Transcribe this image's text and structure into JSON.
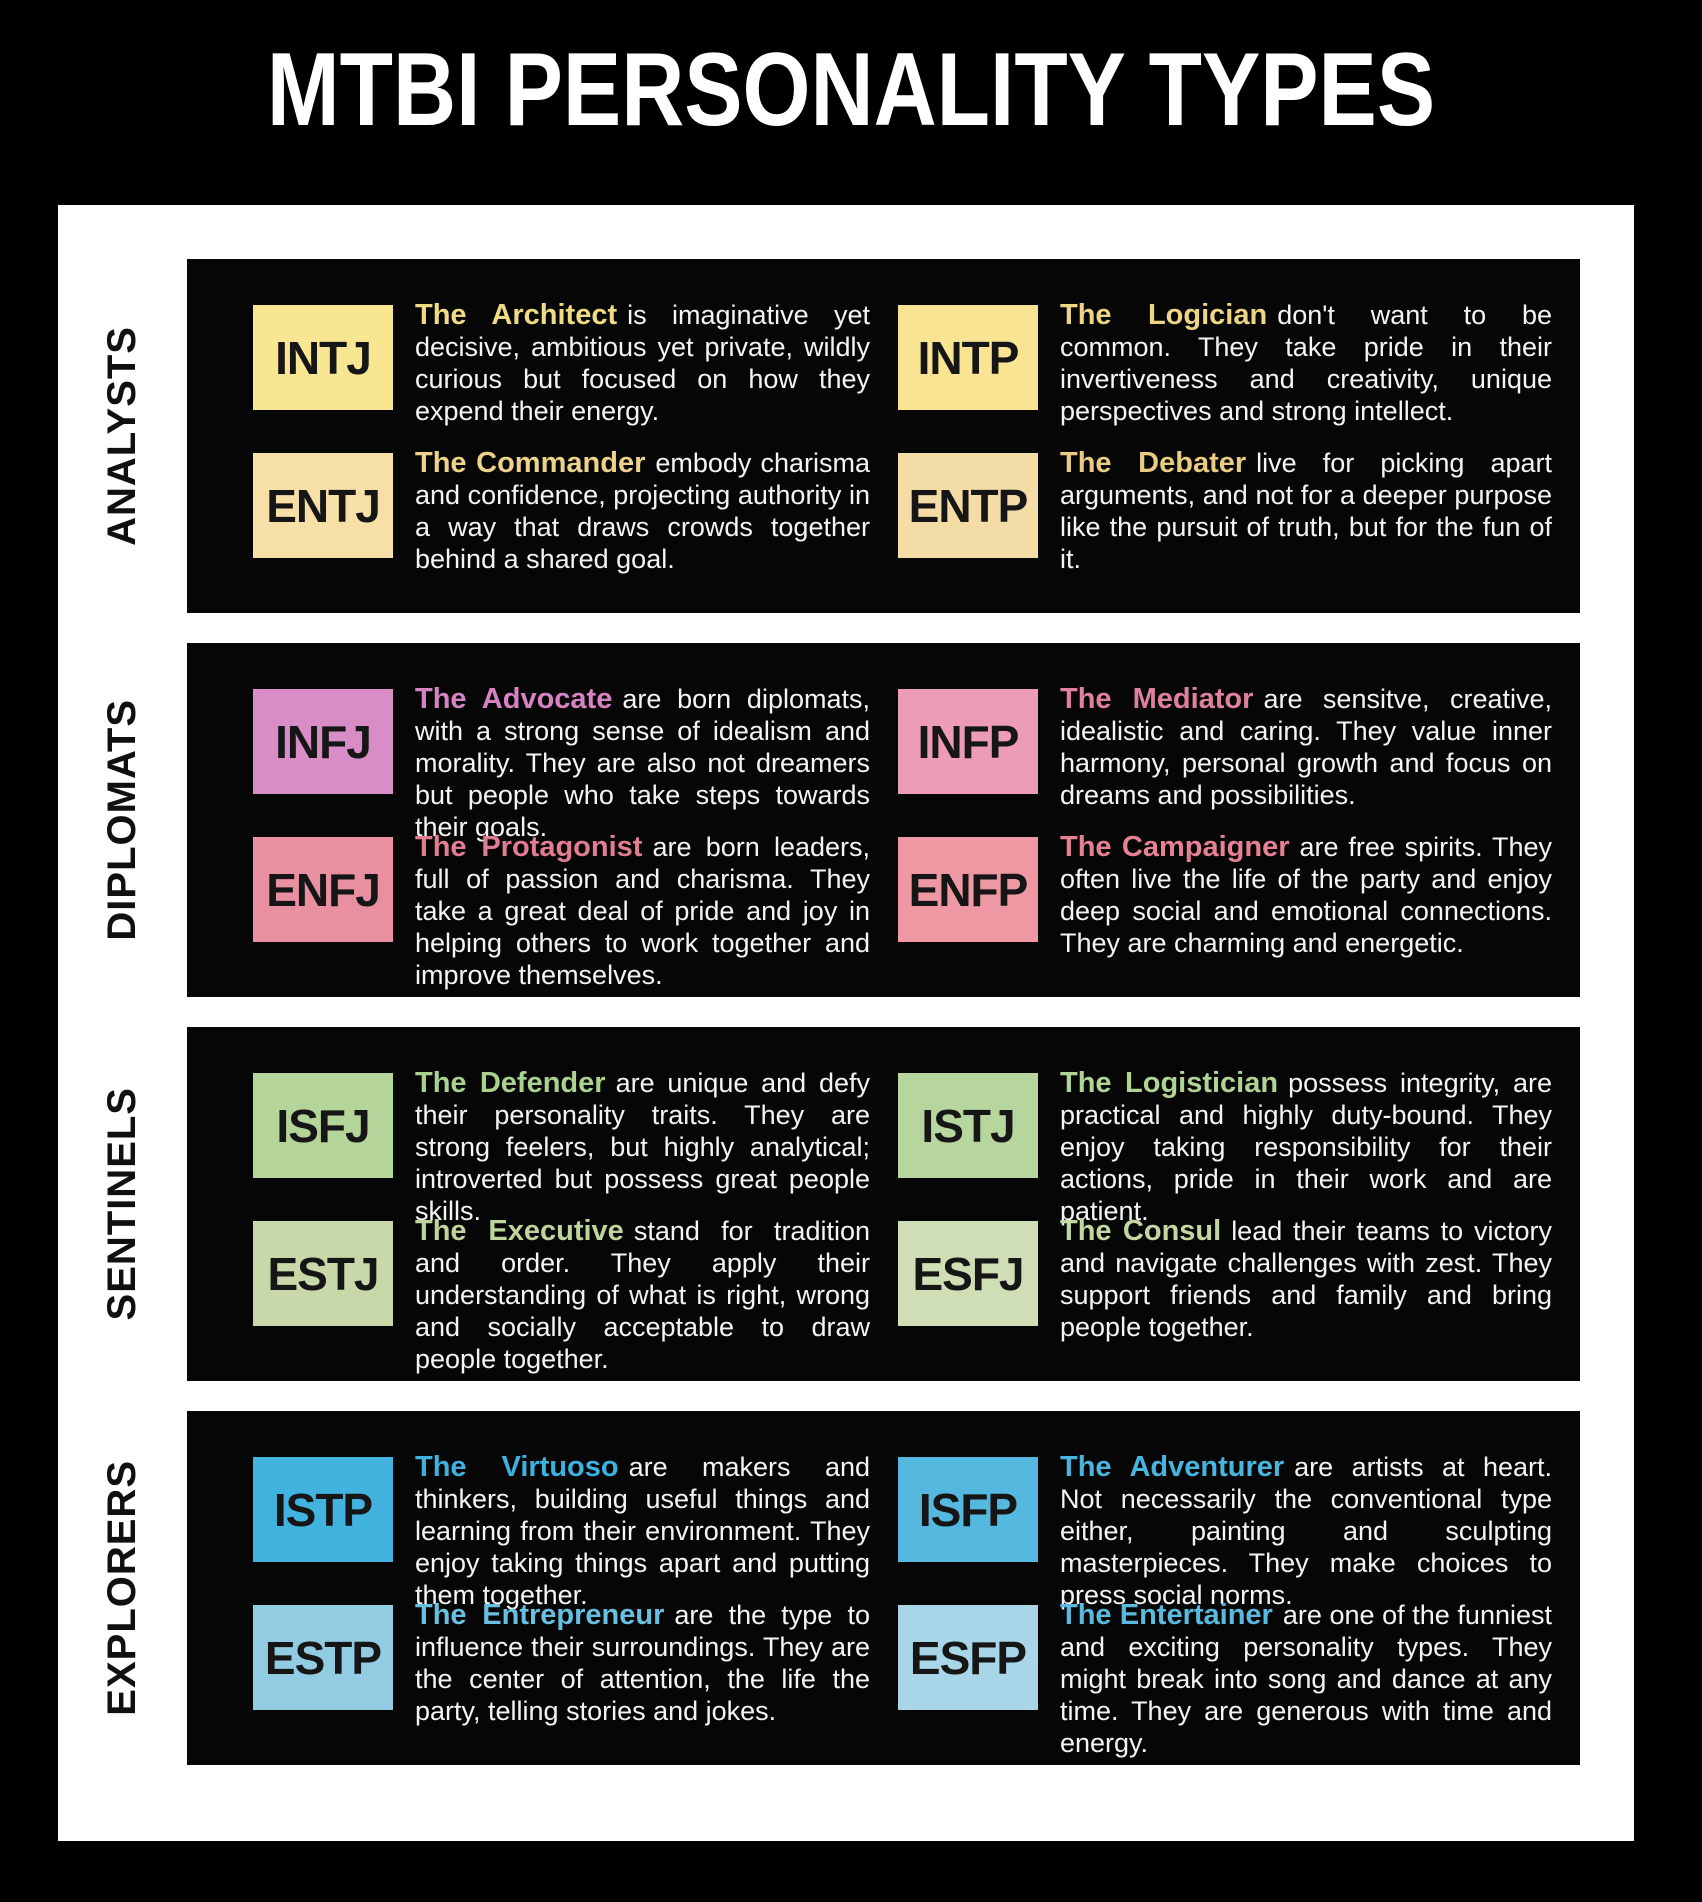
{
  "title": "MTBI PERSONALITY TYPES",
  "colors": {
    "background": "#000000",
    "frame": "#ffffff",
    "panel": "#060606",
    "body_text": "#f4f4f4",
    "section_label_text": "#101010",
    "badge_text": "#161616"
  },
  "sections": [
    {
      "label": "ANALYSTS",
      "types": [
        {
          "code": "INTJ",
          "name": "The Architect",
          "badge_color": "#f8e692",
          "name_color": "#f0db85",
          "description": "is imaginative yet decisive, ambitious yet private, wildly curious but focused on how they expend their energy."
        },
        {
          "code": "INTP",
          "name": "The Logician",
          "badge_color": "#f8e492",
          "name_color": "#edd584",
          "description": "don't want to be common. They take pride in their invertiveness and creativity, unique perspectives and strong intellect."
        },
        {
          "code": "ENTJ",
          "name": "The Commander",
          "badge_color": "#f6e0a8",
          "name_color": "#edd28b",
          "description": "embody charisma and confidence, projecting authority in a way that draws crowds together behind a shared goal."
        },
        {
          "code": "ENTP",
          "name": "The Debater",
          "badge_color": "#f4dca6",
          "name_color": "#e9cb82",
          "description": "live for picking apart arguments, and not for a deeper purpose like the pursuit of truth, but for the fun of it."
        }
      ]
    },
    {
      "label": "DIPLOMATS",
      "types": [
        {
          "code": "INFJ",
          "name": "The Advocate",
          "badge_color": "#d88dc6",
          "name_color": "#d583c2",
          "description": "are born diplomats, with a strong sense of idealism and morality. They are also not dreamers but people who take steps towards their goals."
        },
        {
          "code": "INFP",
          "name": "The Mediator",
          "badge_color": "#ec9cb8",
          "name_color": "#e0809f",
          "description": "are sensitve, creative, idealistic and caring. They value inner harmony, personal growth and focus on dreams and possibilities."
        },
        {
          "code": "ENFJ",
          "name": "The Protagonist",
          "badge_color": "#e8909f",
          "name_color": "#e27d91",
          "description": "are born leaders, full of passion and charisma. They take a great deal of pride and joy in helping others to work together and improve themselves."
        },
        {
          "code": "ENFP",
          "name": "The Campaigner",
          "badge_color": "#ee98a3",
          "name_color": "#e68194",
          "description": "are free spirits. They often live the life of the party and enjoy deep social and emotional connections. They are charming and energetic."
        }
      ]
    },
    {
      "label": "SENTINELS",
      "types": [
        {
          "code": "ISFJ",
          "name": "The Defender",
          "badge_color": "#b4d499",
          "name_color": "#a9d28f",
          "description": "are unique and defy their personality traits. They are strong feelers, but highly analytical; introverted but possess great people skills."
        },
        {
          "code": "ISTJ",
          "name": "The Logistician",
          "badge_color": "#b7d69e",
          "name_color": "#b0d494",
          "description": "possess integrity, are practical and highly duty-bound. They enjoy taking responsibility for their actions, pride in their work and are patient."
        },
        {
          "code": "ESTJ",
          "name": "The Executive",
          "badge_color": "#c8d8a9",
          "name_color": "#bdd59b",
          "description": "stand for tradition and order. They apply their understanding of what is right, wrong and socially acceptable to draw people together."
        },
        {
          "code": "ESFJ",
          "name": "The Consul",
          "badge_color": "#cfdeb5",
          "name_color": "#c3d7a2",
          "description": "lead their teams to victory and navigate challenges with zest. They support friends and family and bring people together."
        }
      ]
    },
    {
      "label": "EXPLORERS",
      "types": [
        {
          "code": "ISTP",
          "name": "The Virtuoso",
          "badge_color": "#41b3de",
          "name_color": "#3db2de",
          "description": "are makers and thinkers, building useful things and learning from their environment. They enjoy taking things apart and putting them together."
        },
        {
          "code": "ISFP",
          "name": "The Adventurer",
          "badge_color": "#55b8df",
          "name_color": "#47b5de",
          "description": "are artists at heart. Not necessarily the conventional type either, painting and sculpting masterpieces. They make choices to press social norms."
        },
        {
          "code": "ESTP",
          "name": "The Entrepreneur",
          "badge_color": "#92cce2",
          "name_color": "#68c0e0",
          "description": "are the type to influence their surroundings. They are the center of attention, the life the party, telling stories and jokes."
        },
        {
          "code": "ESFP",
          "name": "The Entertainer",
          "badge_color": "#a8d6e8",
          "name_color": "#58bade",
          "description": "are one of the funniest and exciting personality types. They might break into song and dance at any time. They are generous with time and energy."
        }
      ]
    }
  ]
}
